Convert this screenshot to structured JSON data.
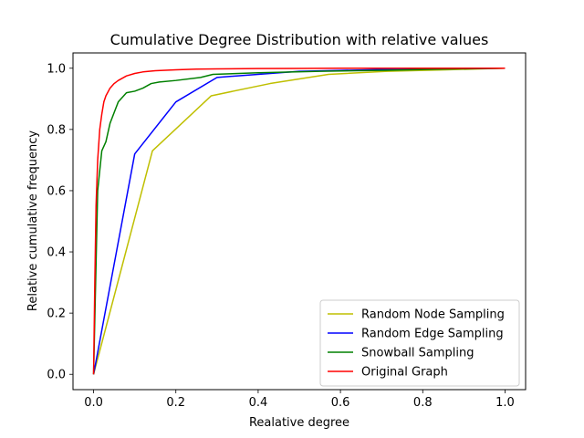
{
  "chart_data": {
    "type": "line",
    "title": "Cumulative Degree Distribution with relative values",
    "xlabel": "Realative degree",
    "ylabel": "Relative cumulative frequency",
    "xlim": [
      -0.05,
      1.05
    ],
    "ylim": [
      -0.05,
      1.05
    ],
    "xticks": [
      0.0,
      0.2,
      0.4,
      0.6,
      0.8,
      1.0
    ],
    "xtick_labels": [
      "0.0",
      "0.2",
      "0.4",
      "0.6",
      "0.8",
      "1.0"
    ],
    "yticks": [
      0.0,
      0.2,
      0.4,
      0.6,
      0.8,
      1.0
    ],
    "ytick_labels": [
      "0.0",
      "0.2",
      "0.4",
      "0.6",
      "0.8",
      "1.0"
    ],
    "grid": false,
    "legend_position": "lower-right",
    "series": [
      {
        "name": "Random Node Sampling",
        "color": "#bfbf00",
        "x": [
          0.0,
          0.143,
          0.286,
          0.429,
          0.571,
          0.714,
          0.857,
          1.0
        ],
        "y": [
          0.0,
          0.73,
          0.91,
          0.95,
          0.98,
          0.99,
          0.995,
          1.0
        ]
      },
      {
        "name": "Random Edge Sampling",
        "color": "#0000ff",
        "x": [
          0.0,
          0.1,
          0.2,
          0.3,
          0.4,
          0.5,
          0.6,
          0.7,
          0.8,
          0.9,
          1.0
        ],
        "y": [
          0.0,
          0.72,
          0.89,
          0.97,
          0.98,
          0.99,
          0.993,
          0.996,
          0.998,
          0.999,
          1.0
        ]
      },
      {
        "name": "Snowball Sampling",
        "color": "#008000",
        "x": [
          0.0,
          0.005,
          0.01,
          0.02,
          0.03,
          0.04,
          0.06,
          0.08,
          0.1,
          0.12,
          0.14,
          0.16,
          0.2,
          0.26,
          0.29,
          0.4,
          0.55,
          0.7,
          0.85,
          1.0
        ],
        "y": [
          0.0,
          0.3,
          0.6,
          0.73,
          0.76,
          0.82,
          0.89,
          0.92,
          0.925,
          0.935,
          0.95,
          0.955,
          0.96,
          0.97,
          0.98,
          0.985,
          0.99,
          0.993,
          0.997,
          1.0
        ]
      },
      {
        "name": "Original Graph",
        "color": "#ff0000",
        "x": [
          0.0,
          0.003,
          0.006,
          0.01,
          0.015,
          0.02,
          0.025,
          0.03,
          0.04,
          0.05,
          0.06,
          0.08,
          0.1,
          0.12,
          0.15,
          0.2,
          0.25,
          0.3,
          0.4,
          0.5,
          0.6,
          0.8,
          1.0
        ],
        "y": [
          0.0,
          0.3,
          0.55,
          0.7,
          0.8,
          0.85,
          0.89,
          0.91,
          0.935,
          0.95,
          0.96,
          0.975,
          0.983,
          0.988,
          0.992,
          0.995,
          0.997,
          0.998,
          0.999,
          0.9995,
          1.0,
          1.0,
          1.0
        ]
      }
    ]
  }
}
